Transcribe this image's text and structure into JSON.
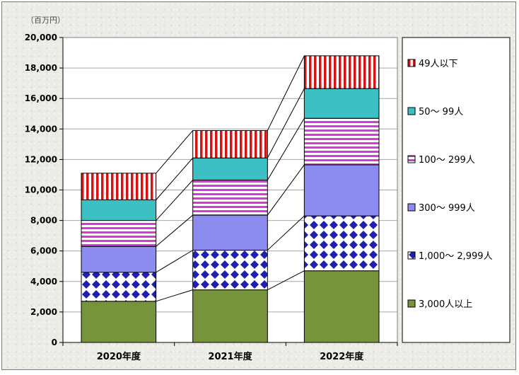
{
  "chart_data": {
    "type": "bar",
    "stacked": true,
    "series_lines": true,
    "unit": "（百万円）",
    "categories": [
      "2020年度",
      "2021年度",
      "2022年度"
    ],
    "yticks": [
      "0",
      "2,000",
      "4,000",
      "6,000",
      "8,000",
      "10,000",
      "12,000",
      "14,000",
      "16,000",
      "18,000",
      "20,000"
    ],
    "ylim": [
      0,
      20000
    ],
    "series": [
      {
        "name": "3,000人以上",
        "values": [
          2700,
          3450,
          4700
        ],
        "color": "#77933c",
        "pattern": "solid"
      },
      {
        "name": "1,000～ 2,999人",
        "values": [
          1900,
          2600,
          3600
        ],
        "color": "#1f1fb0",
        "pattern": "diamond"
      },
      {
        "name": "300～ 999人",
        "values": [
          1700,
          2300,
          3350
        ],
        "color": "#8c8cf0",
        "pattern": "solid"
      },
      {
        "name": "100～ 299人",
        "values": [
          1700,
          2300,
          3050
        ],
        "color": "#d43ad4",
        "pattern": "hstripe"
      },
      {
        "name": "50～ 99人",
        "values": [
          1350,
          1450,
          1950
        ],
        "color": "#3cc0c4",
        "pattern": "solid"
      },
      {
        "name": "49人以下",
        "values": [
          1750,
          1800,
          2150
        ],
        "color": "#d41414",
        "pattern": "vstripe"
      }
    ],
    "legend_position": "right",
    "grid": true
  }
}
